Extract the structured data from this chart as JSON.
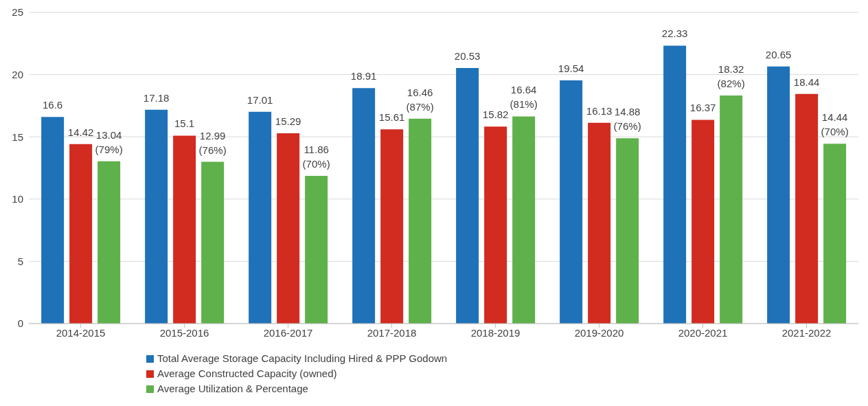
{
  "chart_data": {
    "type": "bar",
    "categories": [
      "2014-2015",
      "2015-2016",
      "2016-2017",
      "2017-2018",
      "2018-2019",
      "2019-2020",
      "2020-2021",
      "2021-2022"
    ],
    "series": [
      {
        "name": "Total Average Storage Capacity Including Hired & PPP Godown",
        "color": "#1f72b8",
        "values": [
          16.6,
          17.18,
          17.01,
          18.91,
          20.53,
          19.54,
          22.33,
          20.65
        ]
      },
      {
        "name": "Average Constructed Capacity (owned)",
        "color": "#d22b20",
        "values": [
          14.42,
          15.1,
          15.29,
          15.61,
          15.82,
          16.13,
          16.37,
          18.44
        ]
      },
      {
        "name": "Average Utilization & Percentage",
        "color": "#5fb14b",
        "values": [
          13.04,
          12.99,
          11.86,
          16.46,
          16.64,
          14.88,
          18.32,
          14.44
        ],
        "value_labels": [
          "13.04\n(79%)",
          "12.99\n(76%)",
          "11.86\n(70%)",
          "16.46\n(87%)",
          "16.64\n(81%)",
          "14.88\n(76%)",
          "18.32\n(82%)",
          "14.44\n(70%)"
        ]
      }
    ],
    "ylim": [
      0,
      25
    ],
    "yticks": [
      0,
      5,
      10,
      15,
      20,
      25
    ],
    "grid": "y",
    "legend": "bottom",
    "data_labels": true
  }
}
